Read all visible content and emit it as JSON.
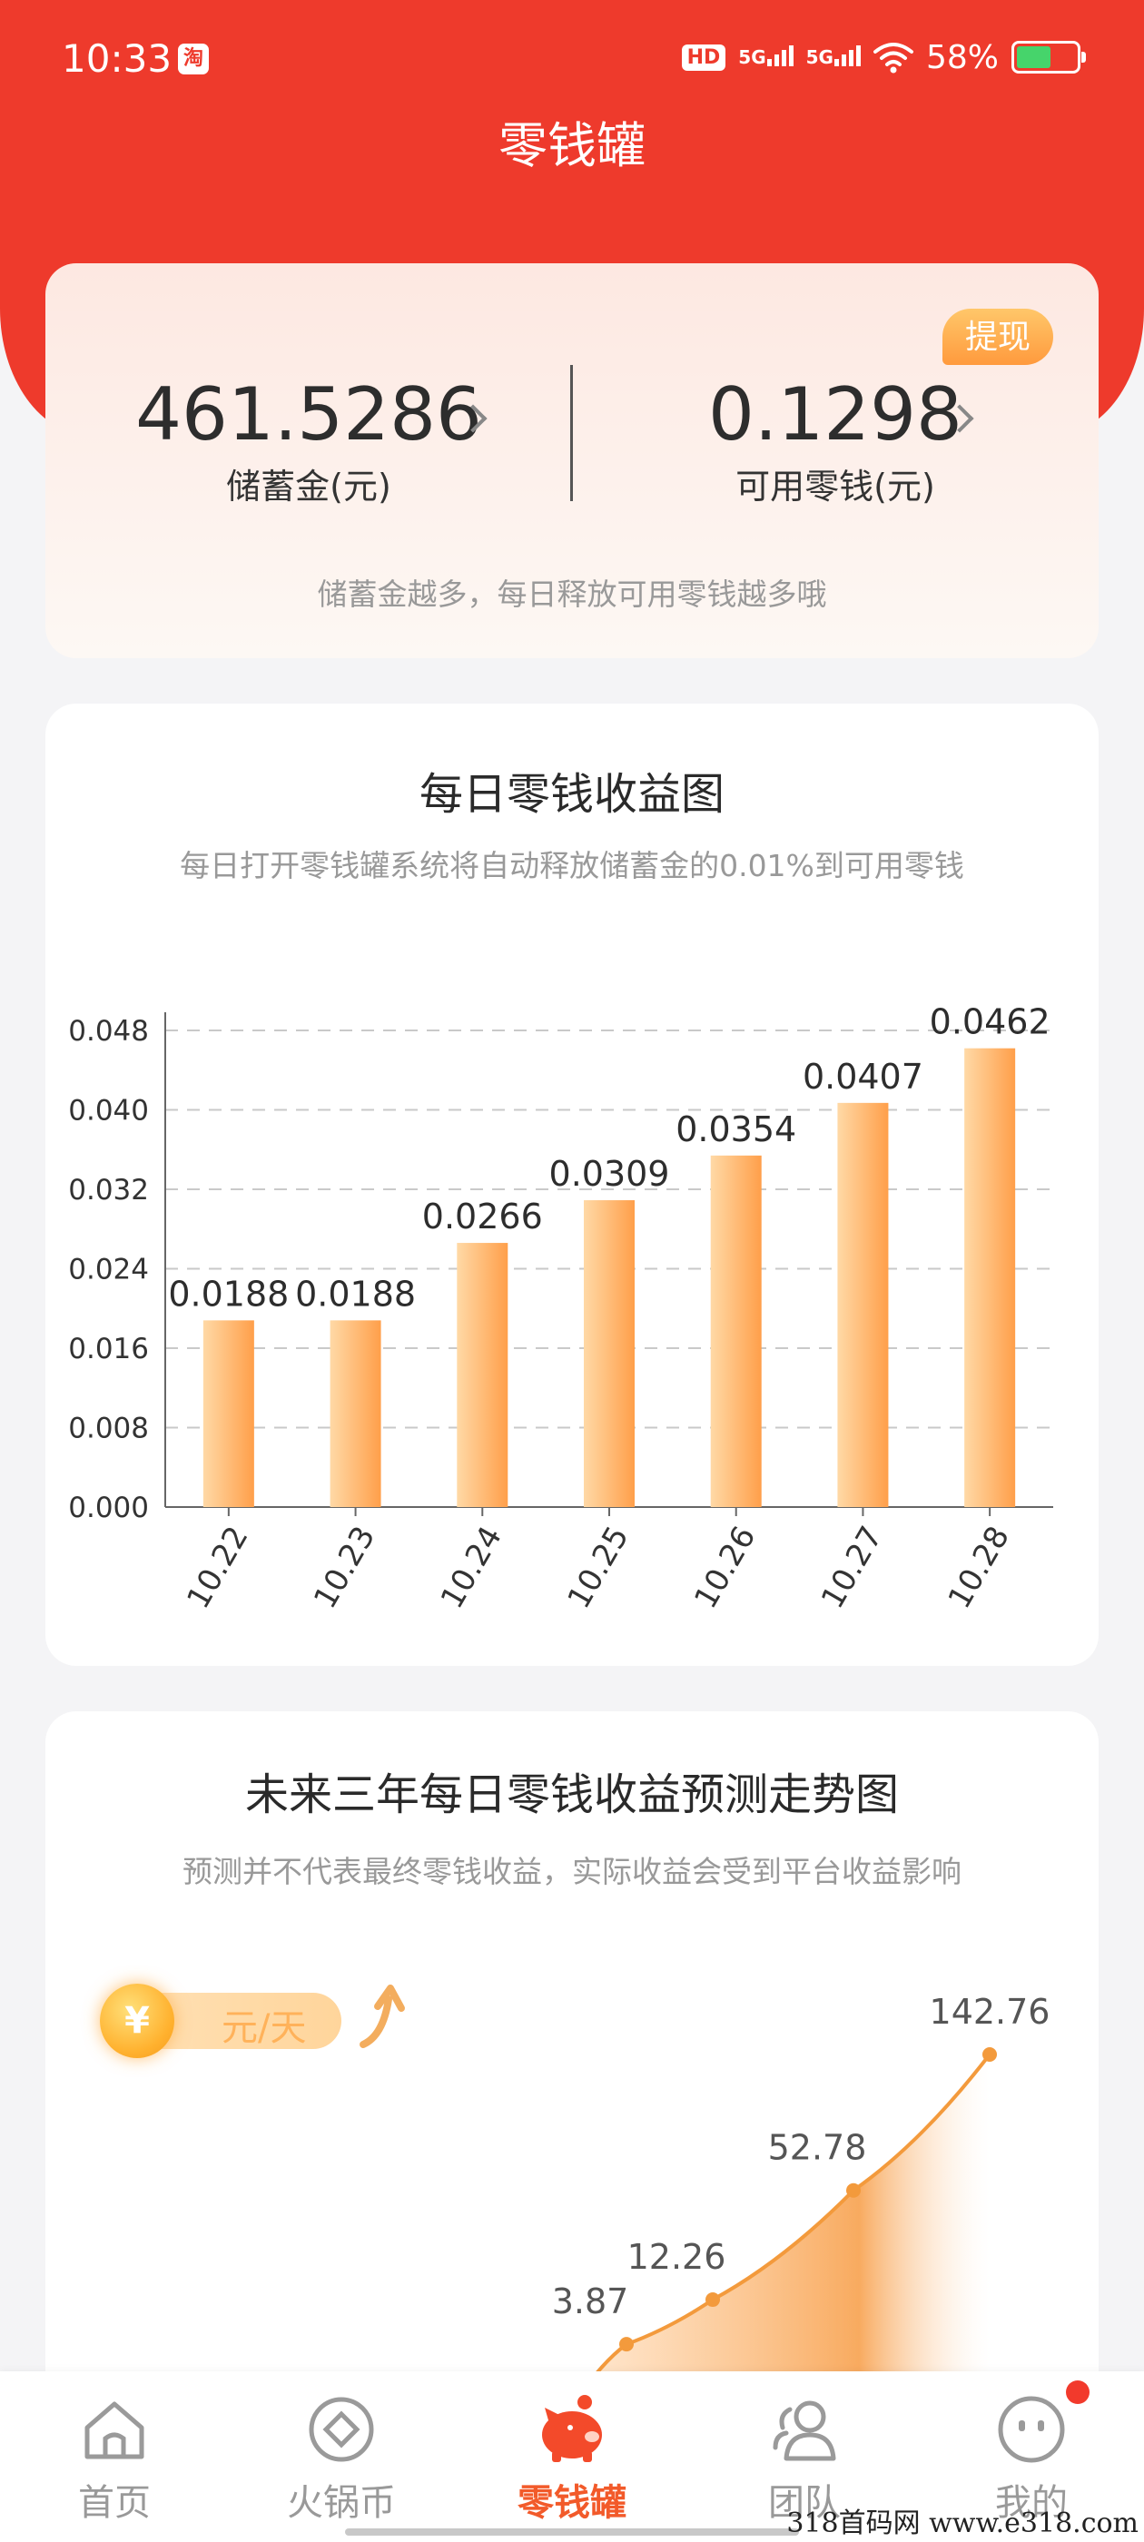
{
  "status_bar": {
    "time": "10:33",
    "app_badge": "淘",
    "hd_badge": "HD",
    "network_1": "5G",
    "network_2": "5G",
    "battery": "58%"
  },
  "page_title": "零钱罐",
  "balance": {
    "withdraw_label": "提现",
    "savings_value": "461.5286",
    "savings_label": "储蓄金(元)",
    "change_value": "0.1298",
    "change_label": "可用零钱(元)",
    "hint": "储蓄金越多，每日释放可用零钱越多哦"
  },
  "daily_chart": {
    "title": "每日零钱收益图",
    "subtitle": "每日打开零钱罐系统将自动释放储蓄金的0.01%到可用零钱"
  },
  "forecast_chart": {
    "title": "未来三年每日零钱收益预测走势图",
    "subtitle": "预测并不代表最终零钱收益，实际收益会受到平台收益影响",
    "unit": "元/天",
    "coin_symbol": "¥"
  },
  "chart_data": [
    {
      "type": "bar",
      "categories": [
        "10.22",
        "10.23",
        "10.24",
        "10.25",
        "10.26",
        "10.27",
        "10.28"
      ],
      "values": [
        0.0188,
        0.0188,
        0.0266,
        0.0309,
        0.0354,
        0.0407,
        0.0462
      ],
      "labels": [
        "0.0188",
        "0.0188",
        "0.0266",
        "0.0309",
        "0.0354",
        "0.0407",
        "0.0462"
      ],
      "ylim": [
        0,
        0.048
      ],
      "yticks": [
        "0.000",
        "0.008",
        "0.016",
        "0.024",
        "0.032",
        "0.040",
        "0.048"
      ],
      "grid": true,
      "bar_color_light": "#ffd9a6",
      "bar_color_dark": "#ff9f4a"
    },
    {
      "type": "area",
      "points": [
        {
          "label": "3.87",
          "value": 3.87
        },
        {
          "label": "12.26",
          "value": 12.26
        },
        {
          "label": "52.78",
          "value": 52.78
        },
        {
          "label": "142.76",
          "value": 142.76
        }
      ],
      "line_color": "#f39a3c"
    }
  ],
  "tabbar": {
    "items": [
      {
        "label": "首页",
        "icon": "home-icon"
      },
      {
        "label": "火锅币",
        "icon": "coin-icon"
      },
      {
        "label": "零钱罐",
        "icon": "piggy-bank-icon"
      },
      {
        "label": "团队",
        "icon": "team-icon"
      },
      {
        "label": "我的",
        "icon": "profile-icon"
      }
    ]
  },
  "watermark": "318首码网 www.e318.com"
}
